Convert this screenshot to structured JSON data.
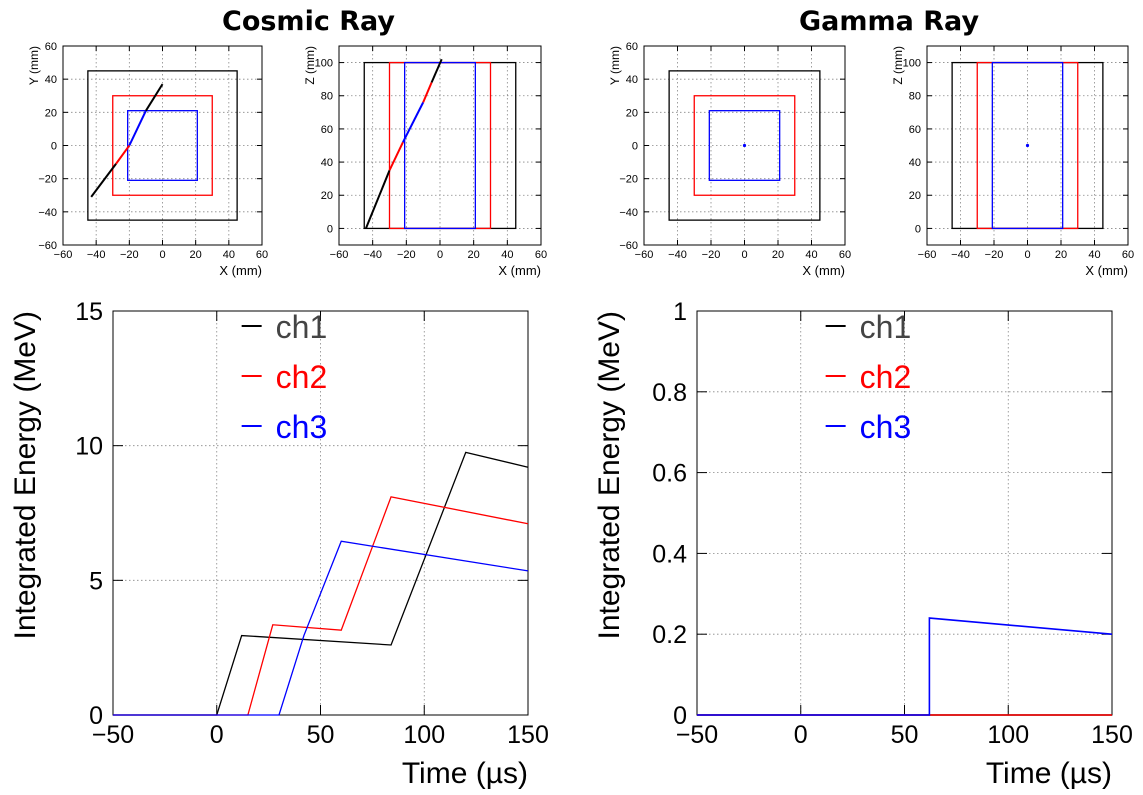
{
  "panels": {
    "cosmic": {
      "title": "Cosmic Ray"
    },
    "gamma": {
      "title": "Gamma Ray"
    }
  },
  "colors": {
    "ch1": "#000000",
    "ch2": "#ff0000",
    "ch3": "#0000ff"
  },
  "chart_data": [
    {
      "id": "cosmic-xy",
      "type": "line",
      "xlabel": "X (mm)",
      "ylabel": "Y (mm)",
      "xlim": [
        -60,
        60
      ],
      "ylim": [
        -60,
        60
      ],
      "xticks": [
        -60,
        -40,
        -20,
        0,
        20,
        40,
        60
      ],
      "yticks": [
        -60,
        -40,
        -20,
        0,
        20,
        40,
        60
      ],
      "grid": true,
      "rects": [
        {
          "color": "black",
          "x": [
            -45,
            45
          ],
          "y": [
            -45,
            45
          ]
        },
        {
          "color": "red",
          "x": [
            -30,
            30
          ],
          "y": [
            -30,
            30
          ]
        },
        {
          "color": "blue",
          "x": [
            -21,
            21
          ],
          "y": [
            -21,
            21
          ]
        }
      ],
      "tracks": [
        {
          "color": "black",
          "x": [
            -43,
            -28
          ],
          "y": [
            -31,
            -11
          ]
        },
        {
          "color": "red",
          "x": [
            -28,
            -20
          ],
          "y": [
            -11,
            0
          ]
        },
        {
          "color": "blue",
          "x": [
            -20,
            -10
          ],
          "y": [
            0,
            21
          ]
        },
        {
          "color": "black",
          "x": [
            -10,
            0
          ],
          "y": [
            21,
            37
          ]
        }
      ]
    },
    {
      "id": "cosmic-xz",
      "type": "line",
      "xlabel": "X (mm)",
      "ylabel": "Z (mm)",
      "xlim": [
        -60,
        60
      ],
      "ylim": [
        -10,
        110
      ],
      "xticks": [
        -60,
        -40,
        -20,
        0,
        20,
        40,
        60
      ],
      "yticks": [
        0,
        20,
        40,
        60,
        80,
        100
      ],
      "grid": true,
      "rects": [
        {
          "color": "black",
          "x": [
            -45,
            45
          ],
          "y": [
            0,
            100
          ]
        },
        {
          "color": "red",
          "x": [
            -30,
            30
          ],
          "y": [
            0,
            100
          ]
        },
        {
          "color": "blue",
          "x": [
            -21,
            21
          ],
          "y": [
            0,
            100
          ]
        }
      ],
      "tracks": [
        {
          "color": "black",
          "x": [
            -44,
            -30
          ],
          "y": [
            0,
            35
          ]
        },
        {
          "color": "red",
          "x": [
            -30,
            -22
          ],
          "y": [
            35,
            52
          ]
        },
        {
          "color": "blue",
          "x": [
            -22,
            -10
          ],
          "y": [
            52,
            76
          ]
        },
        {
          "color": "red",
          "x": [
            -10,
            -5
          ],
          "y": [
            76,
            88
          ]
        },
        {
          "color": "black",
          "x": [
            -5,
            1
          ],
          "y": [
            88,
            102
          ]
        }
      ]
    },
    {
      "id": "gamma-xy",
      "type": "scatter",
      "xlabel": "X (mm)",
      "ylabel": "Y (mm)",
      "xlim": [
        -60,
        60
      ],
      "ylim": [
        -60,
        60
      ],
      "xticks": [
        -60,
        -40,
        -20,
        0,
        20,
        40,
        60
      ],
      "yticks": [
        -60,
        -40,
        -20,
        0,
        20,
        40,
        60
      ],
      "grid": true,
      "rects": [
        {
          "color": "black",
          "x": [
            -45,
            45
          ],
          "y": [
            -45,
            45
          ]
        },
        {
          "color": "red",
          "x": [
            -30,
            30
          ],
          "y": [
            -30,
            30
          ]
        },
        {
          "color": "blue",
          "x": [
            -21,
            21
          ],
          "y": [
            -21,
            21
          ]
        }
      ],
      "points": [
        {
          "color": "blue",
          "x": 0,
          "y": 0
        }
      ]
    },
    {
      "id": "gamma-xz",
      "type": "scatter",
      "xlabel": "X (mm)",
      "ylabel": "Z (mm)",
      "xlim": [
        -60,
        60
      ],
      "ylim": [
        -10,
        110
      ],
      "xticks": [
        -60,
        -40,
        -20,
        0,
        20,
        40,
        60
      ],
      "yticks": [
        0,
        20,
        40,
        60,
        80,
        100
      ],
      "grid": true,
      "rects": [
        {
          "color": "black",
          "x": [
            -45,
            45
          ],
          "y": [
            0,
            100
          ]
        },
        {
          "color": "red",
          "x": [
            -30,
            30
          ],
          "y": [
            0,
            100
          ]
        },
        {
          "color": "blue",
          "x": [
            -21,
            21
          ],
          "y": [
            0,
            100
          ]
        }
      ],
      "points": [
        {
          "color": "blue",
          "x": 0,
          "y": 50
        }
      ]
    },
    {
      "id": "cosmic-energy",
      "type": "line",
      "xlabel": "Time (µs)",
      "ylabel": "Integrated Energy (MeV)",
      "xlim": [
        -50,
        150
      ],
      "ylim": [
        0,
        15
      ],
      "xticks": [
        -50,
        0,
        50,
        100,
        150
      ],
      "yticks": [
        0,
        5,
        10,
        15
      ],
      "grid": true,
      "legend": "top-center",
      "series": [
        {
          "name": "ch1",
          "color": "black",
          "x": [
            -50,
            0,
            12,
            84,
            120,
            150
          ],
          "y": [
            0,
            0,
            2.95,
            2.6,
            9.75,
            9.2
          ]
        },
        {
          "name": "ch2",
          "color": "red",
          "x": [
            -50,
            15,
            27,
            60,
            84,
            150
          ],
          "y": [
            0,
            0,
            3.35,
            3.15,
            8.1,
            7.1
          ]
        },
        {
          "name": "ch3",
          "color": "blue",
          "x": [
            -50,
            30,
            42,
            60,
            150
          ],
          "y": [
            0,
            0,
            2.95,
            6.45,
            5.35
          ]
        }
      ]
    },
    {
      "id": "gamma-energy",
      "type": "line",
      "xlabel": "Time (µs)",
      "ylabel": "Integrated Energy (MeV)",
      "xlim": [
        -50,
        150
      ],
      "ylim": [
        0,
        1
      ],
      "xticks": [
        -50,
        0,
        50,
        100,
        150
      ],
      "yticks": [
        0,
        0.2,
        0.4,
        0.6,
        0.8,
        1
      ],
      "grid": true,
      "legend": "top-center",
      "series": [
        {
          "name": "ch1",
          "color": "black",
          "x": [
            -50,
            150
          ],
          "y": [
            0,
            0
          ]
        },
        {
          "name": "ch2",
          "color": "red",
          "x": [
            -50,
            150
          ],
          "y": [
            0,
            0
          ]
        },
        {
          "name": "ch3",
          "color": "blue",
          "x": [
            -50,
            62,
            62,
            150
          ],
          "y": [
            0,
            0,
            0.24,
            0.2
          ]
        }
      ]
    }
  ]
}
